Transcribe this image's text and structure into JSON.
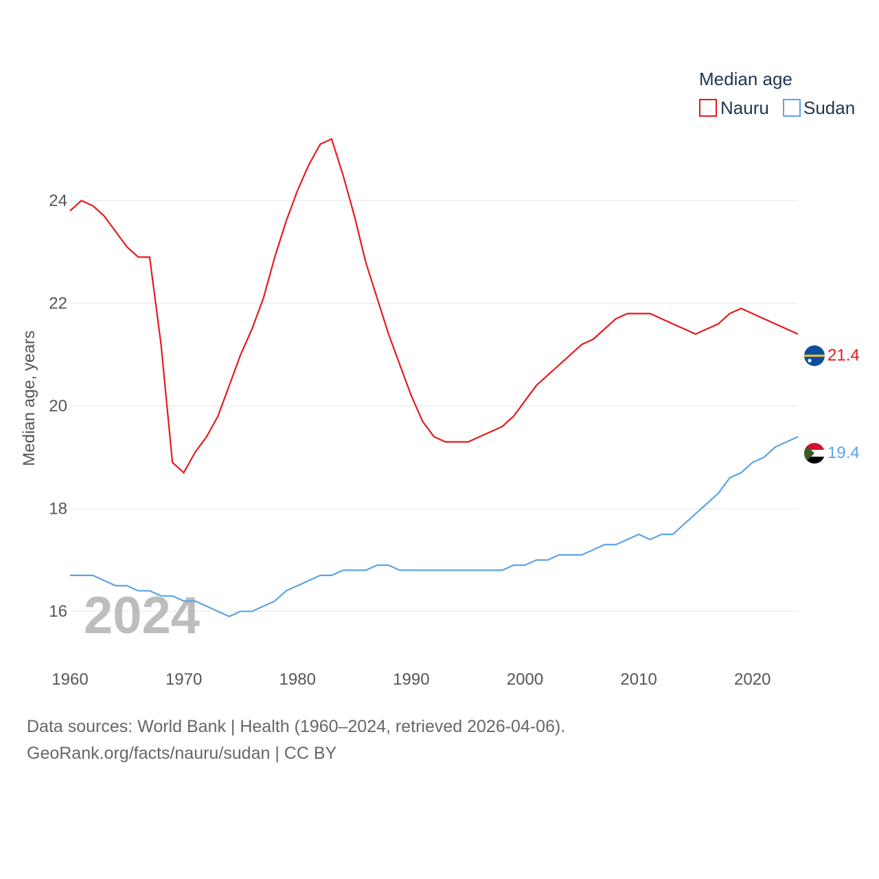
{
  "chart_data": {
    "type": "line",
    "title": "",
    "legend_title": "Median age",
    "legend_position": "top-right",
    "xlabel": "",
    "ylabel": "Median age, years",
    "xlim": [
      1960,
      2024
    ],
    "ylim": [
      15,
      25.5
    ],
    "x_ticks": [
      1960,
      1970,
      1980,
      1990,
      2000,
      2010,
      2020
    ],
    "y_ticks": [
      16,
      18,
      20,
      22,
      24
    ],
    "grid": true,
    "year_label": "2024",
    "x": [
      1960,
      1961,
      1962,
      1963,
      1964,
      1965,
      1966,
      1967,
      1968,
      1969,
      1970,
      1971,
      1972,
      1973,
      1974,
      1975,
      1976,
      1977,
      1978,
      1979,
      1980,
      1981,
      1982,
      1983,
      1984,
      1985,
      1986,
      1987,
      1988,
      1989,
      1990,
      1991,
      1992,
      1993,
      1994,
      1995,
      1996,
      1997,
      1998,
      1999,
      2000,
      2001,
      2002,
      2003,
      2004,
      2005,
      2006,
      2007,
      2008,
      2009,
      2010,
      2011,
      2012,
      2013,
      2014,
      2015,
      2016,
      2017,
      2018,
      2019,
      2020,
      2021,
      2022,
      2023,
      2024
    ],
    "series": [
      {
        "name": "Nauru",
        "color": "#e8171b",
        "end_label": "21.4",
        "values": [
          23.8,
          24.0,
          23.9,
          23.7,
          23.4,
          23.1,
          22.9,
          22.9,
          21.2,
          18.9,
          18.7,
          19.1,
          19.4,
          19.8,
          20.4,
          21.0,
          21.5,
          22.1,
          22.9,
          23.6,
          24.2,
          24.7,
          25.1,
          25.2,
          24.5,
          23.7,
          22.8,
          22.1,
          21.4,
          20.8,
          20.2,
          19.7,
          19.4,
          19.3,
          19.3,
          19.3,
          19.4,
          19.5,
          19.6,
          19.8,
          20.1,
          20.4,
          20.6,
          20.8,
          21.0,
          21.2,
          21.3,
          21.5,
          21.7,
          21.8,
          21.8,
          21.8,
          21.7,
          21.6,
          21.5,
          21.4,
          21.5,
          21.6,
          21.8,
          21.9,
          21.8,
          21.7,
          21.6,
          21.5,
          21.4
        ]
      },
      {
        "name": "Sudan",
        "color": "#5ba3e6",
        "end_label": "19.4",
        "values": [
          16.7,
          16.7,
          16.7,
          16.6,
          16.5,
          16.5,
          16.4,
          16.4,
          16.3,
          16.3,
          16.2,
          16.2,
          16.1,
          16.0,
          15.9,
          16.0,
          16.0,
          16.1,
          16.2,
          16.4,
          16.5,
          16.6,
          16.7,
          16.7,
          16.8,
          16.8,
          16.8,
          16.9,
          16.9,
          16.8,
          16.8,
          16.8,
          16.8,
          16.8,
          16.8,
          16.8,
          16.8,
          16.8,
          16.8,
          16.9,
          16.9,
          17.0,
          17.0,
          17.1,
          17.1,
          17.1,
          17.2,
          17.3,
          17.3,
          17.4,
          17.5,
          17.4,
          17.5,
          17.5,
          17.7,
          17.9,
          18.1,
          18.3,
          18.6,
          18.7,
          18.9,
          19.0,
          19.2,
          19.3,
          19.4
        ]
      }
    ]
  },
  "flags": {
    "nauru": {
      "icon": "nauru-flag-icon",
      "blue": "#0b4ea2",
      "yellow": "#ffc61e",
      "star": "#ffffff"
    },
    "sudan": {
      "icon": "sudan-flag-icon",
      "red": "#d21034",
      "white": "#ffffff",
      "black": "#000000",
      "green": "#3c5a26"
    }
  },
  "footer": {
    "line1": "Data sources: World Bank | Health (1960–2024, retrieved 2026-04-06).",
    "line2": "GeoRank.org/facts/nauru/sudan | CC BY"
  }
}
